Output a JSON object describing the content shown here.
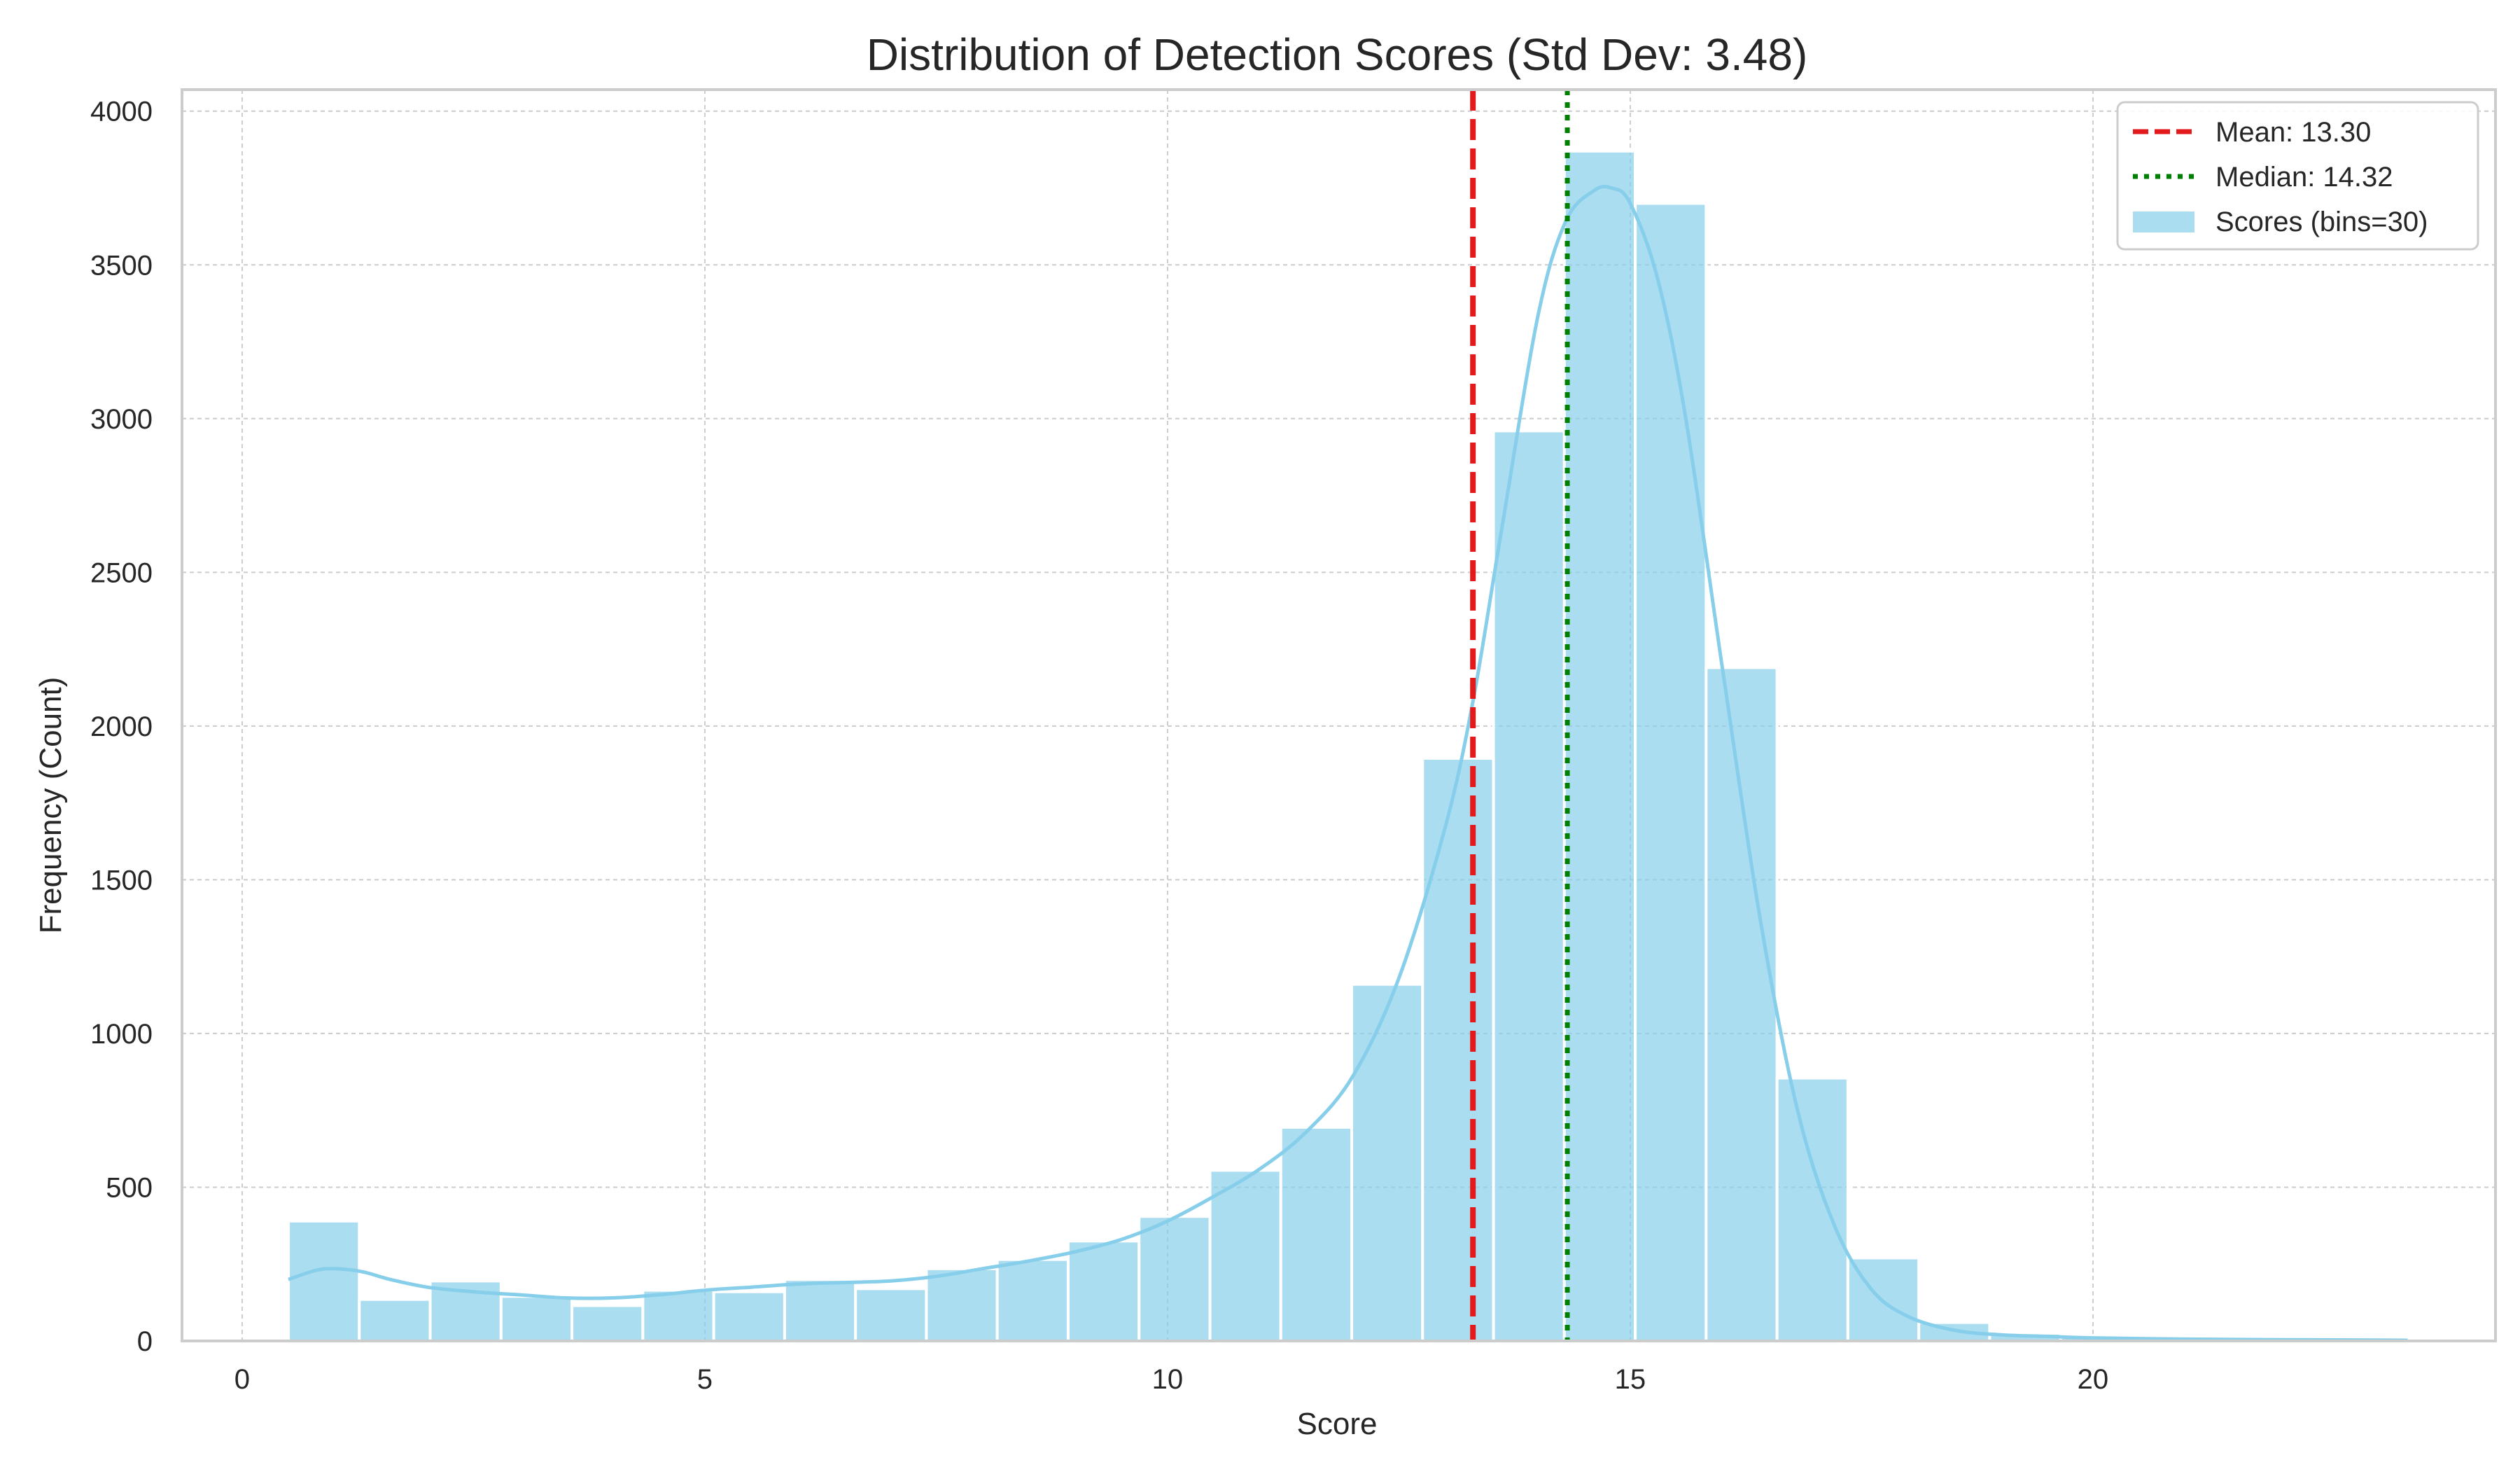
{
  "chart_data": {
    "type": "bar",
    "title": "Distribution of Detection Scores (Std Dev: 3.48)",
    "xlabel": "Score",
    "ylabel": "Frequency (Count)",
    "xlim": [
      -0.65,
      24.35
    ],
    "ylim": [
      0,
      4070
    ],
    "xticks": [
      0,
      5,
      10,
      15,
      20
    ],
    "yticks": [
      0,
      500,
      1000,
      1500,
      2000,
      2500,
      3000,
      3500,
      4000
    ],
    "grid": true,
    "legend_position": "top-right",
    "bins": {
      "edges": [
        0.5,
        1.266,
        2.032,
        2.798,
        3.564,
        4.33,
        5.096,
        5.862,
        6.628,
        7.394,
        8.16,
        8.926,
        9.692,
        10.458,
        11.224,
        11.99,
        12.756,
        13.522,
        14.288,
        15.054,
        15.82,
        16.586,
        17.352,
        18.118,
        18.884,
        19.65,
        20.416,
        21.182,
        21.948,
        22.714,
        23.48
      ],
      "counts": [
        390,
        135,
        195,
        145,
        115,
        165,
        160,
        200,
        170,
        235,
        265,
        325,
        405,
        555,
        695,
        1160,
        1895,
        2960,
        3870,
        3700,
        2190,
        855,
        270,
        60,
        25,
        15,
        8,
        5,
        5,
        5
      ],
      "color": "#87ceeb"
    },
    "kde": {
      "x": [
        0.5,
        0.8,
        1.0,
        1.3,
        1.6,
        2.0,
        2.5,
        3.0,
        3.5,
        4.0,
        4.5,
        5.0,
        5.5,
        6.0,
        6.5,
        7.0,
        7.5,
        8.0,
        8.5,
        9.0,
        9.5,
        10.0,
        10.5,
        11.0,
        11.5,
        12.0,
        12.5,
        13.0,
        13.3,
        13.6,
        14.0,
        14.3,
        14.6,
        14.8,
        15.0,
        15.3,
        15.6,
        16.0,
        16.4,
        16.8,
        17.2,
        17.6,
        18.0,
        18.5,
        19.0,
        19.5,
        20.0,
        21.0,
        22.0,
        23.0,
        23.4
      ],
      "y": [
        200,
        230,
        235,
        225,
        200,
        175,
        160,
        150,
        140,
        140,
        150,
        165,
        175,
        185,
        190,
        195,
        210,
        235,
        260,
        290,
        330,
        390,
        470,
        560,
        680,
        860,
        1180,
        1670,
        2080,
        2620,
        3330,
        3640,
        3740,
        3750,
        3700,
        3450,
        3000,
        2180,
        1380,
        760,
        380,
        170,
        80,
        35,
        20,
        15,
        10,
        6,
        4,
        3,
        2
      ],
      "color": "#87ceeb"
    },
    "lines": [
      {
        "name": "Mean: 13.30",
        "x": 13.3,
        "color": "#e31a1c",
        "style": "dashed"
      },
      {
        "name": "Median: 14.32",
        "x": 14.32,
        "color": "#008000",
        "style": "dotted"
      }
    ],
    "legend": [
      {
        "label": "Mean: 13.30",
        "kind": "dashed-line",
        "color": "#e31a1c"
      },
      {
        "label": "Median: 14.32",
        "kind": "dotted-line",
        "color": "#008000"
      },
      {
        "label": "Scores (bins=30)",
        "kind": "patch",
        "color": "#87ceeb"
      }
    ]
  }
}
